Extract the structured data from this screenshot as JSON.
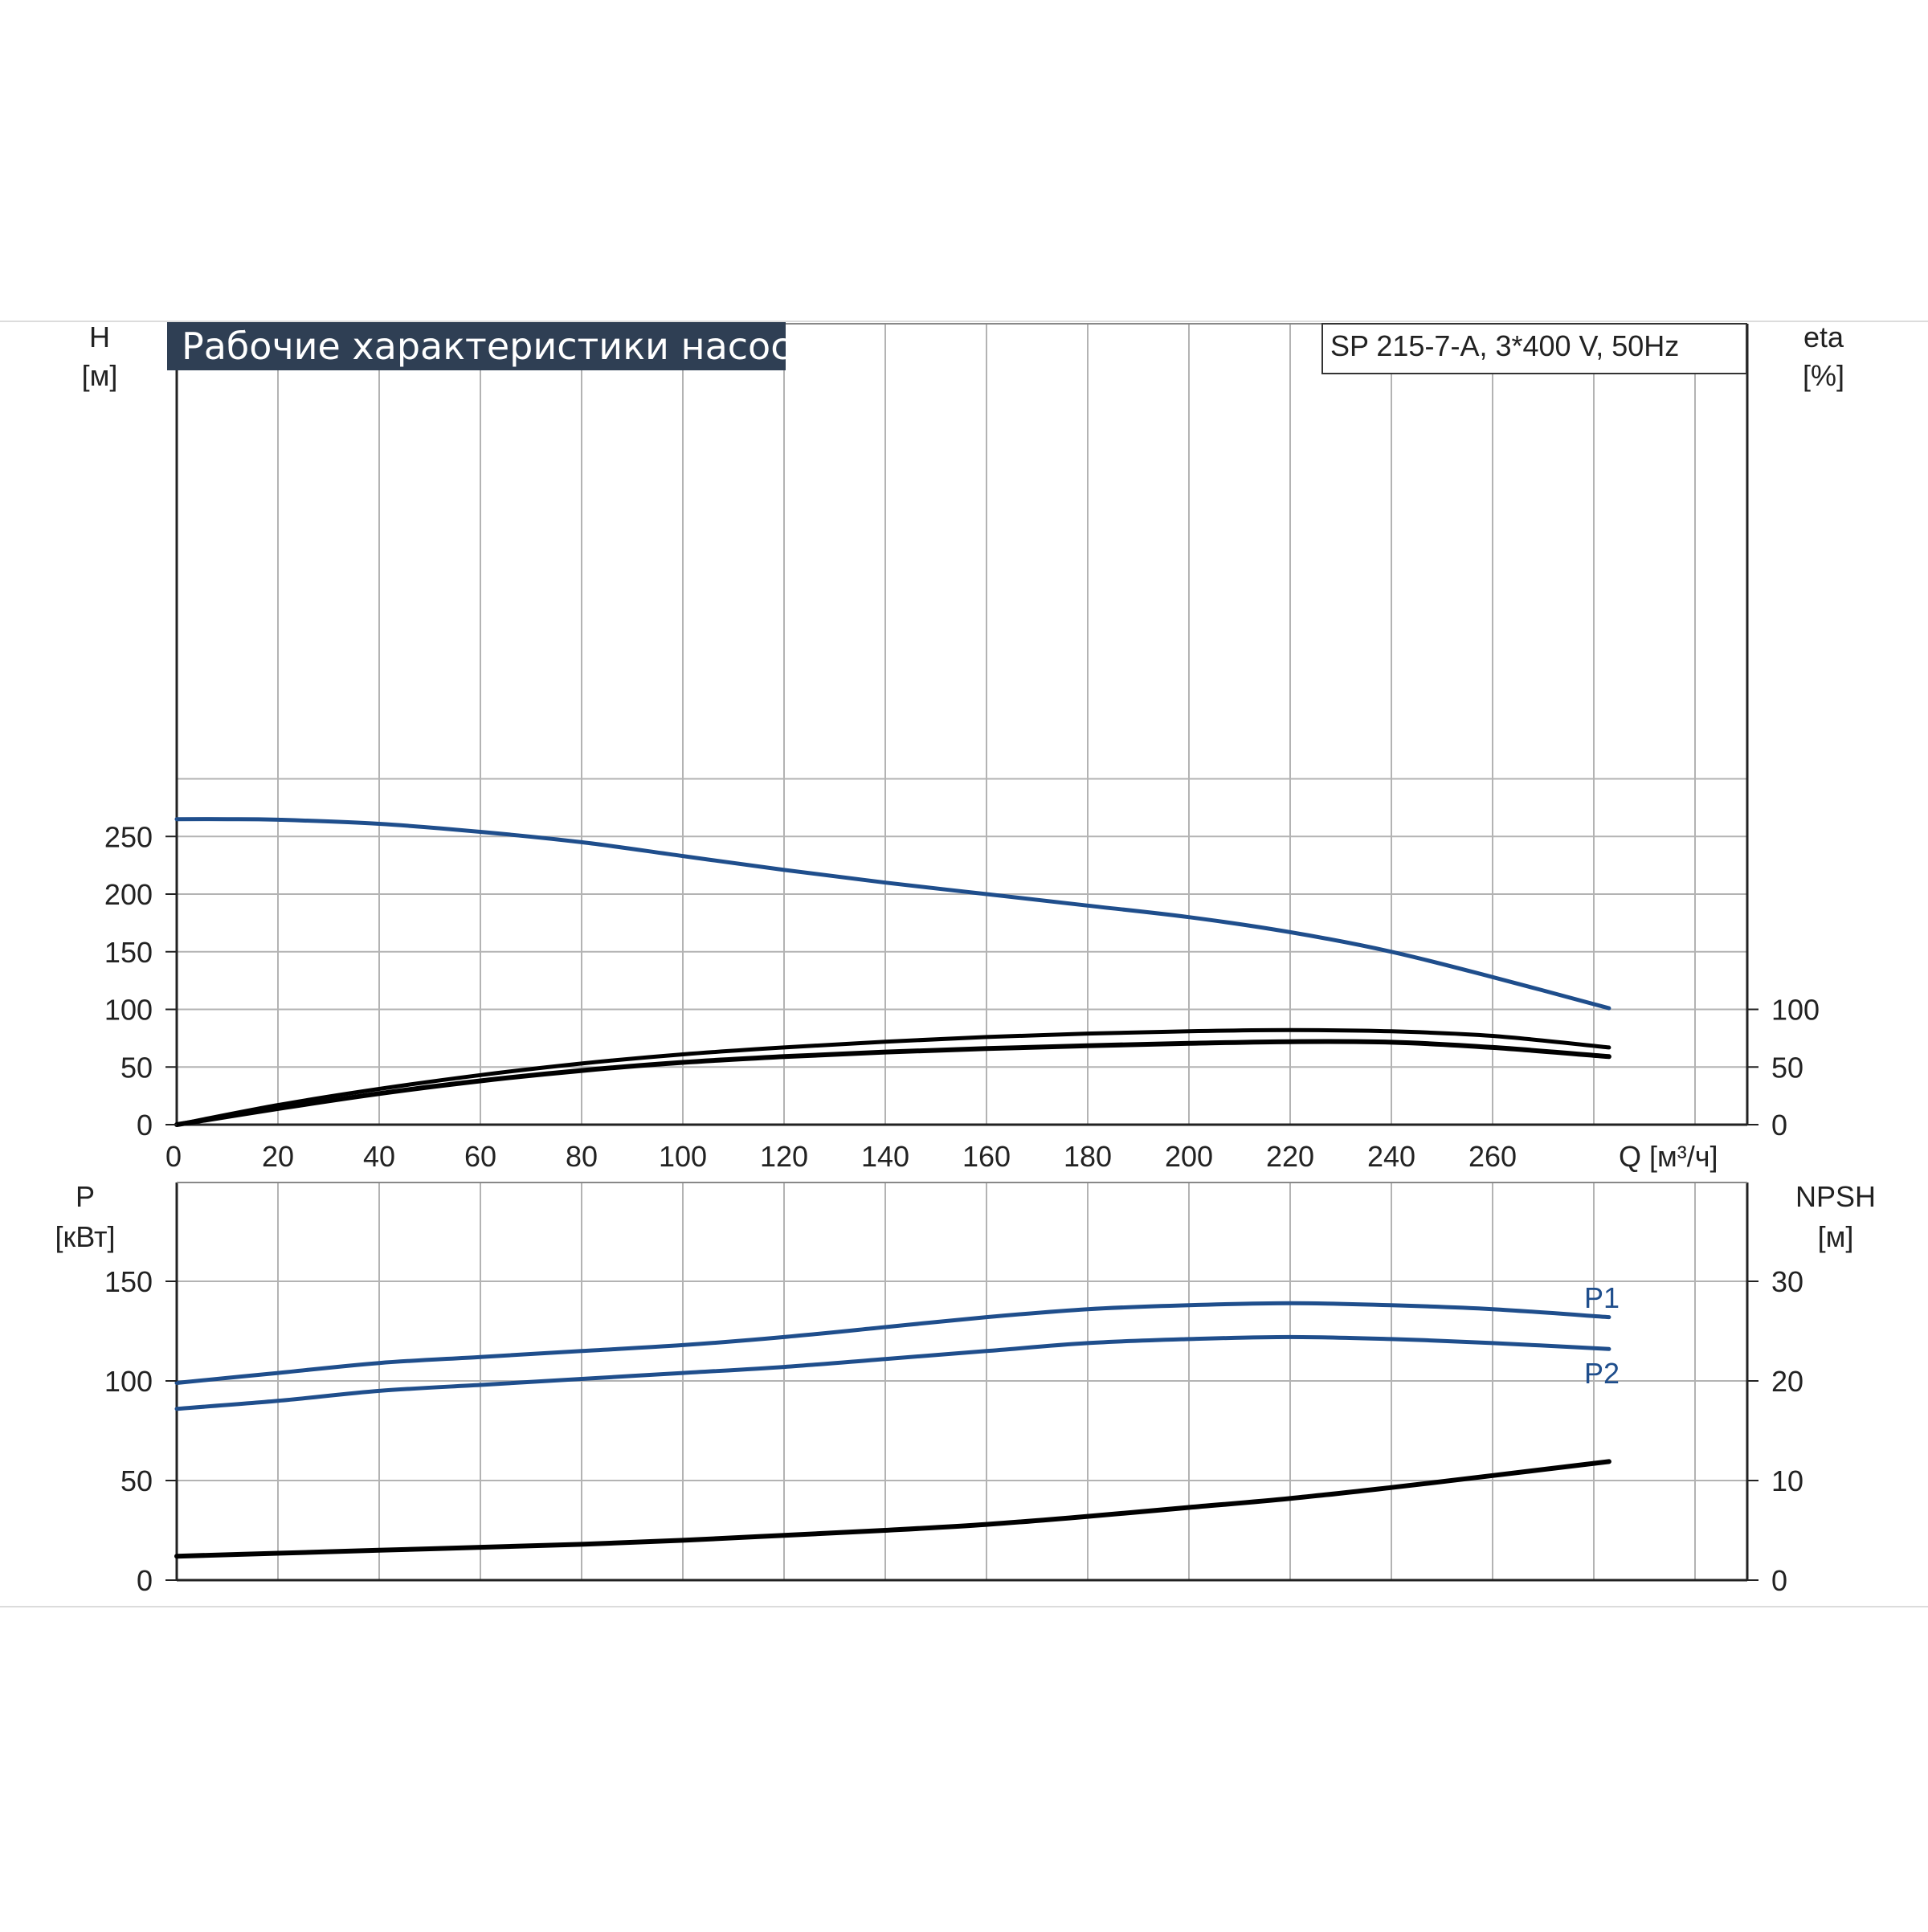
{
  "chart_data": [
    {
      "type": "line",
      "title": "Рабочие характеристики насоса",
      "model_label": "SP 215-7-A, 3*400 V, 50Hz",
      "left_axis": {
        "label_line1": "H",
        "label_line2": "[м]",
        "ylim": [
          0,
          300
        ],
        "ticks": [
          0,
          50,
          100,
          150,
          200,
          250
        ]
      },
      "right_axis": {
        "label_line1": "eta",
        "label_line2": "[%]",
        "ylim": [
          0,
          300
        ],
        "ticks": [
          0,
          50,
          100
        ]
      },
      "x_axis": {
        "label": "Q [м³/ч]",
        "xlim": [
          0,
          285
        ],
        "ticks": [
          0,
          20,
          40,
          60,
          80,
          100,
          120,
          140,
          160,
          180,
          200,
          220,
          240,
          260
        ]
      },
      "grid": true,
      "series": [
        {
          "axis": "left",
          "color": "#1f4e8c",
          "x": [
            0,
            10,
            20,
            40,
            60,
            80,
            100,
            120,
            140,
            160,
            180,
            200,
            220,
            240,
            260,
            283
          ],
          "values": [
            265,
            265,
            264.5,
            261,
            254,
            245,
            233,
            221,
            210,
            200,
            190,
            180,
            167,
            150,
            128,
            101
          ]
        },
        {
          "axis": "right",
          "color": "#000000",
          "x": [
            0,
            20,
            40,
            60,
            80,
            100,
            120,
            140,
            160,
            180,
            200,
            220,
            240,
            260,
            283
          ],
          "values": [
            0,
            17,
            31,
            43,
            53,
            61,
            67,
            72,
            76,
            79,
            81,
            82,
            81,
            77,
            67
          ]
        },
        {
          "axis": "right",
          "color": "#000000",
          "x": [
            0,
            20,
            40,
            60,
            80,
            100,
            120,
            140,
            160,
            180,
            200,
            220,
            240,
            260,
            283
          ],
          "values": [
            0,
            14,
            27,
            38,
            47,
            54,
            59,
            63,
            66,
            68.5,
            70.5,
            72,
            71.5,
            67,
            59
          ]
        }
      ]
    },
    {
      "type": "line",
      "left_axis": {
        "label_line1": "P",
        "label_line2": "[кВт]",
        "ylim": [
          0,
          200
        ],
        "ticks": [
          0,
          50,
          100,
          150
        ]
      },
      "right_axis": {
        "label_line1": "NPSH",
        "label_line2": "[м]",
        "ylim": [
          0,
          40
        ],
        "ticks": [
          0,
          10,
          20,
          30
        ]
      },
      "x_axis": {
        "xlim": [
          0,
          285
        ]
      },
      "grid": true,
      "series": [
        {
          "name": "P1",
          "axis": "left",
          "color": "#1f4e8c",
          "x": [
            0,
            20,
            40,
            60,
            80,
            100,
            120,
            140,
            160,
            180,
            200,
            220,
            240,
            260,
            283
          ],
          "values": [
            99,
            104,
            109,
            112,
            115,
            118,
            122,
            127,
            132,
            136,
            138,
            139,
            138,
            136,
            132
          ]
        },
        {
          "name": "P2",
          "axis": "left",
          "color": "#1f4e8c",
          "x": [
            0,
            20,
            40,
            60,
            80,
            100,
            120,
            140,
            160,
            180,
            200,
            220,
            240,
            260,
            283
          ],
          "values": [
            86,
            90,
            95,
            98,
            101,
            104,
            107,
            111,
            115,
            119,
            121,
            122,
            121,
            119,
            116
          ]
        },
        {
          "axis": "right",
          "color": "#000000",
          "x": [
            0,
            20,
            40,
            60,
            80,
            100,
            120,
            140,
            160,
            180,
            200,
            220,
            240,
            260,
            283
          ],
          "values": [
            2.4,
            2.7,
            3.0,
            3.3,
            3.6,
            4.0,
            4.5,
            5.0,
            5.6,
            6.4,
            7.3,
            8.2,
            9.3,
            10.5,
            11.9
          ]
        }
      ]
    }
  ]
}
